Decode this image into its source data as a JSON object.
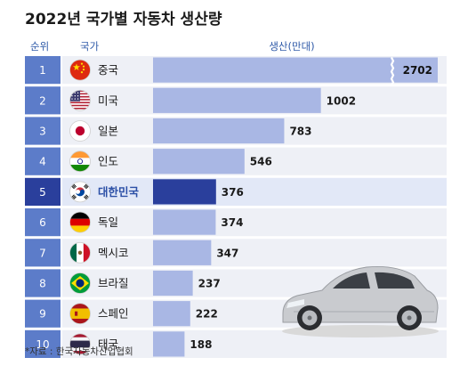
{
  "title": "2022년 국가별 자동차 생산량",
  "headers": {
    "rank": "순위",
    "country": "국가",
    "production": "생산(만대)"
  },
  "source": "*자료 : 한국자동차산업협회",
  "colors": {
    "bar": "#a9b7e4",
    "bar_highlight": "#2a3f9c",
    "rank_box": "#5c7cc9",
    "rank_box_highlight": "#2a3f9c",
    "row_highlight": "#e2e8f7",
    "row_band": "#eef0f6"
  },
  "chart_data": {
    "type": "bar",
    "orientation": "horizontal",
    "title": "2022년 국가별 자동차 생산량",
    "ylabel": "생산(만대)",
    "ranks": [
      "1",
      "2",
      "3",
      "4",
      "5",
      "6",
      "7",
      "8",
      "9",
      "10"
    ],
    "categories": [
      "중국",
      "미국",
      "일본",
      "인도",
      "대한민국",
      "독일",
      "멕시코",
      "브라질",
      "스페인",
      "태국"
    ],
    "values": [
      2702,
      1002,
      783,
      546,
      376,
      374,
      347,
      237,
      222,
      188
    ],
    "flags": [
      "china-flag-icon",
      "usa-flag-icon",
      "japan-flag-icon",
      "india-flag-icon",
      "korea-flag-icon",
      "germany-flag-icon",
      "mexico-flag-icon",
      "brazil-flag-icon",
      "spain-flag-icon",
      "thailand-flag-icon"
    ],
    "highlight": "대한민국",
    "axis_break": "중국"
  }
}
